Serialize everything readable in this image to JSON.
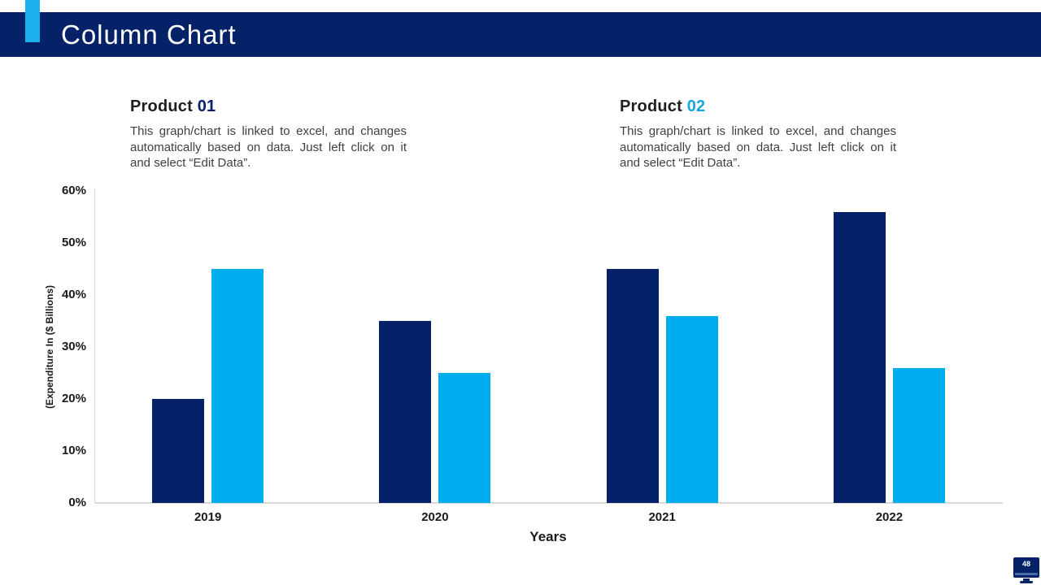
{
  "header": {
    "title": "Column Chart"
  },
  "products": [
    {
      "label": "Product",
      "number": "01",
      "description": "This graph/chart is linked to excel, and changes automatically based on data. Just left click on it and select “Edit Data”."
    },
    {
      "label": "Product",
      "number": "02",
      "description": "This graph/chart is linked to excel, and changes automatically based on data. Just left click on it and select “Edit Data”."
    }
  ],
  "page_badge": {
    "number": "48"
  },
  "colors": {
    "navy": "#052268",
    "cyan": "#00AEEF",
    "accent_cyan": "#1CB0F0",
    "product02_number": "#17A6DB",
    "axis_line": "#D9D9D9",
    "body_text": "#3F3F3F"
  },
  "chart_data": {
    "type": "bar",
    "categories": [
      "2019",
      "2020",
      "2021",
      "2022"
    ],
    "series": [
      {
        "name": "Product 01",
        "color": "#052268",
        "values": [
          20,
          35,
          45,
          56
        ]
      },
      {
        "name": "Product 02",
        "color": "#00AEEF",
        "values": [
          45,
          25,
          36,
          26
        ]
      }
    ],
    "title": "",
    "xlabel": "Years",
    "ylabel": "(Expenditure In ($ Billions)",
    "ylim": [
      0,
      60
    ],
    "yticks": [
      "0%",
      "10%",
      "20%",
      "30%",
      "40%",
      "50%",
      "60%"
    ],
    "grid": false,
    "legend": "none"
  }
}
